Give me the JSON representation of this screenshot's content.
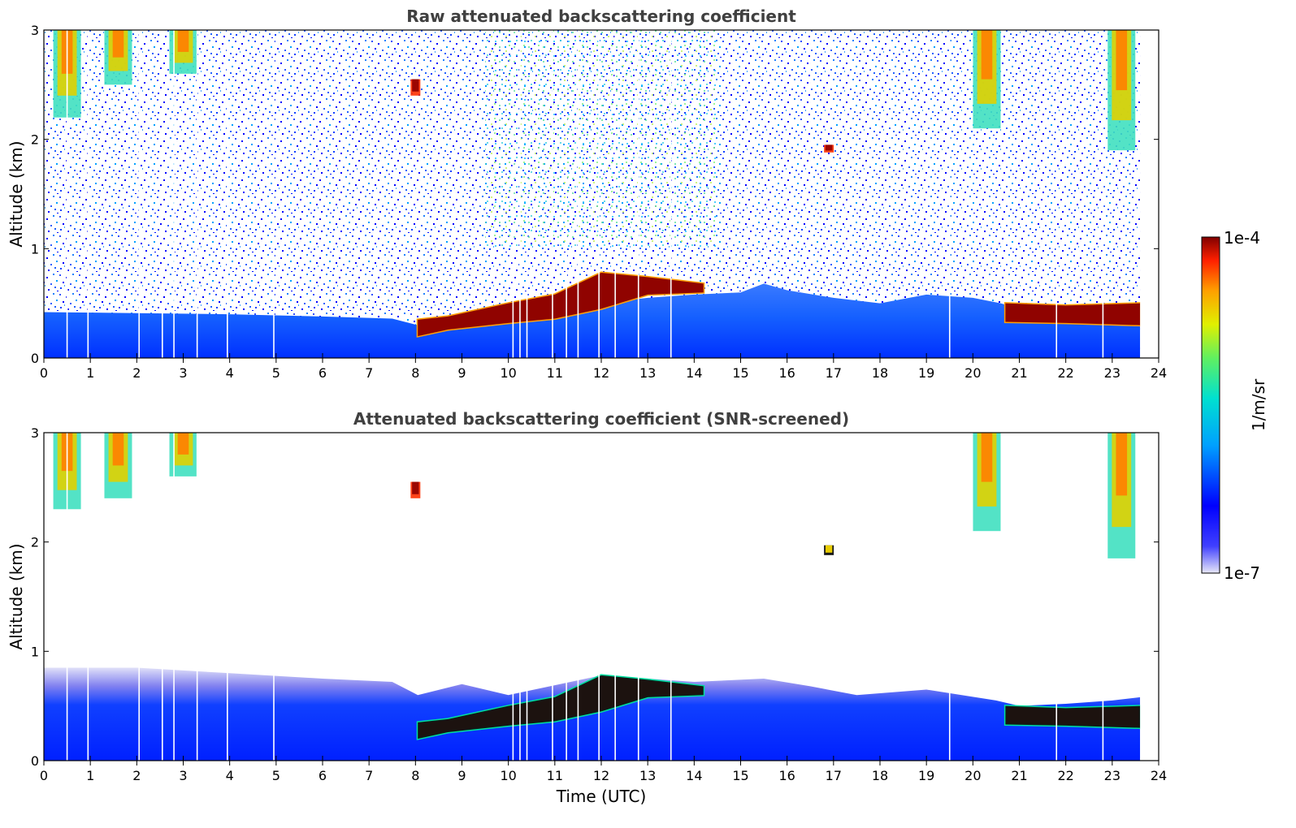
{
  "colors": {
    "title": "#404040",
    "axis": "#000000",
    "colormap": [
      "#e8e8f8",
      "#0000ff",
      "#00a0ff",
      "#00e0d0",
      "#60f060",
      "#e0f000",
      "#ffa000",
      "#ff2000",
      "#800000"
    ]
  },
  "colorbar": {
    "top_label": "1e-4",
    "bottom_label": "1e-7",
    "unit_label": "1/m/sr"
  },
  "chart_data": [
    {
      "type": "heatmap",
      "title": "Raw attenuated backscattering coefficient",
      "xlabel": "",
      "ylabel": "Altitude (km)",
      "xlim": [
        0,
        24
      ],
      "ylim": [
        0,
        3
      ],
      "x_ticks": [
        "0",
        "1",
        "2",
        "3",
        "4",
        "5",
        "6",
        "7",
        "8",
        "9",
        "10",
        "11",
        "12",
        "13",
        "14",
        "15",
        "16",
        "17",
        "18",
        "19",
        "20",
        "21",
        "22",
        "23",
        "24"
      ],
      "y_ticks": [
        "0",
        "1",
        "2",
        "3"
      ],
      "data_end_hour": 23.6,
      "boundary_layer_top_km": [
        [
          0,
          0.42
        ],
        [
          2,
          0.41
        ],
        [
          4,
          0.4
        ],
        [
          6,
          0.38
        ],
        [
          7.5,
          0.36
        ],
        [
          8.05,
          0.3
        ],
        [
          9,
          0.35
        ],
        [
          10,
          0.42
        ],
        [
          12,
          0.5
        ],
        [
          13,
          0.55
        ],
        [
          14,
          0.58
        ],
        [
          15,
          0.6
        ],
        [
          15.5,
          0.68
        ],
        [
          16,
          0.62
        ],
        [
          17,
          0.55
        ],
        [
          18,
          0.5
        ],
        [
          19,
          0.58
        ],
        [
          20,
          0.55
        ],
        [
          20.6,
          0.5
        ],
        [
          21,
          0.45
        ],
        [
          22,
          0.44
        ],
        [
          23,
          0.45
        ],
        [
          23.6,
          0.45
        ]
      ],
      "cloud_layer_km": [
        [
          8.05,
          0.2,
          0.35
        ],
        [
          8.7,
          0.26,
          0.38
        ],
        [
          10,
          0.32,
          0.5
        ],
        [
          11,
          0.36,
          0.58
        ],
        [
          12,
          0.45,
          0.78
        ],
        [
          13,
          0.58,
          0.74
        ],
        [
          14.2,
          0.6,
          0.68
        ],
        [
          20.7,
          0.33,
          0.5
        ],
        [
          22,
          0.32,
          0.48
        ],
        [
          23.6,
          0.3,
          0.5
        ]
      ],
      "elevated_features": [
        {
          "time_h": 0.5,
          "altitude_km": [
            2.2,
            3.0
          ],
          "level": "high"
        },
        {
          "time_h": 1.6,
          "altitude_km": [
            2.5,
            3.0
          ],
          "level": "high"
        },
        {
          "time_h": 3.0,
          "altitude_km": [
            2.6,
            3.0
          ],
          "level": "high"
        },
        {
          "time_h": 8.0,
          "altitude_km": [
            2.4,
            2.55
          ],
          "level": "max"
        },
        {
          "time_h": 16.9,
          "altitude_km": [
            1.88,
            1.95
          ],
          "level": "max"
        },
        {
          "time_h": 20.3,
          "altitude_km": [
            2.1,
            3.0
          ],
          "level": "high"
        },
        {
          "time_h": 23.2,
          "altitude_km": [
            1.9,
            3.0
          ],
          "level": "high"
        }
      ],
      "data_gaps_h": [
        0.5,
        0.95,
        2.05,
        2.55,
        2.8,
        3.3,
        3.95,
        4.95,
        10.1,
        10.25,
        10.4,
        10.95,
        11.25,
        11.5,
        11.95,
        12.3,
        12.8,
        13.5,
        19.5,
        21.8,
        22.8
      ]
    },
    {
      "type": "heatmap",
      "title": "Attenuated backscattering coefficient (SNR-screened)",
      "xlabel": "Time (UTC)",
      "ylabel": "Altitude (km)",
      "xlim": [
        0,
        24
      ],
      "ylim": [
        0,
        3
      ],
      "x_ticks": [
        "0",
        "1",
        "2",
        "3",
        "4",
        "5",
        "6",
        "7",
        "8",
        "9",
        "10",
        "11",
        "12",
        "13",
        "14",
        "15",
        "16",
        "17",
        "18",
        "19",
        "20",
        "21",
        "22",
        "23",
        "24"
      ],
      "y_ticks": [
        "0",
        "1",
        "2",
        "3"
      ],
      "data_end_hour": 23.6,
      "screened_top_km": [
        [
          0,
          0.85
        ],
        [
          2,
          0.85
        ],
        [
          4,
          0.8
        ],
        [
          6,
          0.75
        ],
        [
          7.5,
          0.72
        ],
        [
          8.05,
          0.6
        ],
        [
          9,
          0.7
        ],
        [
          10,
          0.6
        ],
        [
          12,
          0.78
        ],
        [
          13,
          0.75
        ],
        [
          14,
          0.72
        ],
        [
          15.5,
          0.75
        ],
        [
          16.5,
          0.68
        ],
        [
          17.5,
          0.6
        ],
        [
          19,
          0.65
        ],
        [
          20.5,
          0.55
        ],
        [
          21,
          0.5
        ],
        [
          22,
          0.52
        ],
        [
          23,
          0.55
        ],
        [
          23.6,
          0.58
        ]
      ],
      "cloud_layer_km": [
        [
          8.05,
          0.2,
          0.35
        ],
        [
          8.7,
          0.26,
          0.38
        ],
        [
          10,
          0.32,
          0.5
        ],
        [
          11,
          0.36,
          0.58
        ],
        [
          12,
          0.45,
          0.78
        ],
        [
          13,
          0.58,
          0.74
        ],
        [
          14.2,
          0.6,
          0.68
        ],
        [
          20.7,
          0.33,
          0.5
        ],
        [
          22,
          0.32,
          0.48
        ],
        [
          23.6,
          0.3,
          0.5
        ]
      ],
      "elevated_features": [
        {
          "time_h": 0.5,
          "altitude_km": [
            2.3,
            3.0
          ],
          "level": "high"
        },
        {
          "time_h": 1.6,
          "altitude_km": [
            2.4,
            3.0
          ],
          "level": "high"
        },
        {
          "time_h": 3.0,
          "altitude_km": [
            2.6,
            3.0
          ],
          "level": "high"
        },
        {
          "time_h": 8.0,
          "altitude_km": [
            2.4,
            2.55
          ],
          "level": "max"
        },
        {
          "time_h": 16.9,
          "altitude_km": [
            1.88,
            1.97
          ],
          "level": "saturated"
        },
        {
          "time_h": 20.3,
          "altitude_km": [
            2.1,
            3.0
          ],
          "level": "high"
        },
        {
          "time_h": 23.2,
          "altitude_km": [
            1.85,
            3.0
          ],
          "level": "high"
        }
      ],
      "data_gaps_h": [
        0.5,
        0.95,
        2.05,
        2.55,
        2.8,
        3.3,
        3.95,
        4.95,
        10.1,
        10.25,
        10.4,
        10.95,
        11.25,
        11.5,
        11.95,
        12.3,
        12.8,
        13.5,
        19.5,
        21.8,
        22.8
      ]
    }
  ]
}
